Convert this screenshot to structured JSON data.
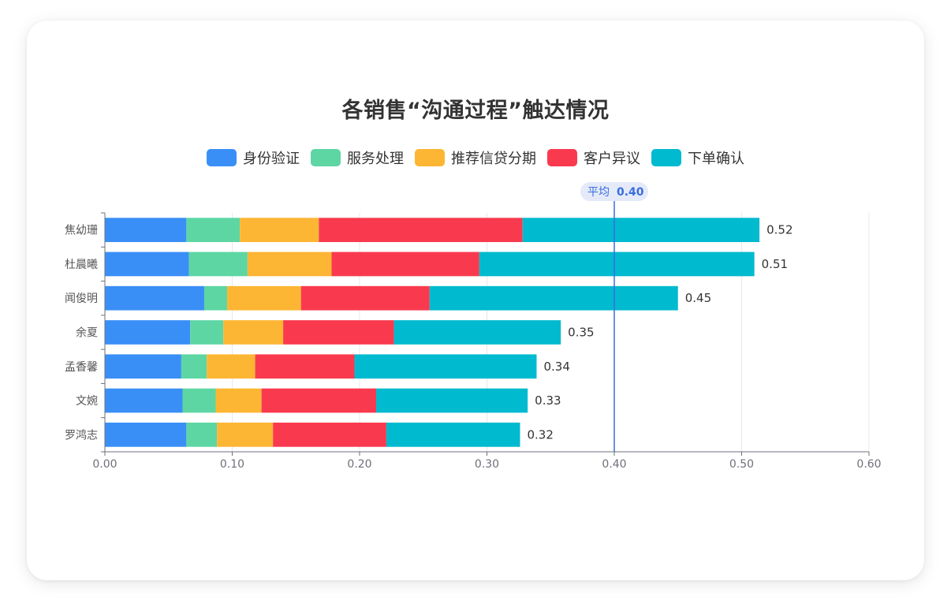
{
  "chart_data": {
    "type": "bar",
    "orientation": "horizontal",
    "stacked": true,
    "title": "各销售“沟通过程”触达情况",
    "categories": [
      "焦幼珊",
      "杜晨曦",
      "闻俊明",
      "余夏",
      "孟香馨",
      "文婉",
      "罗鸿志"
    ],
    "series": [
      {
        "name": "身份验证",
        "color": "#3a8ff7",
        "values": [
          0.064,
          0.066,
          0.078,
          0.067,
          0.06,
          0.061,
          0.064
        ]
      },
      {
        "name": "服务处理",
        "color": "#5dd6a4",
        "values": [
          0.042,
          0.046,
          0.018,
          0.026,
          0.02,
          0.026,
          0.024
        ]
      },
      {
        "name": "推荐信贷分期",
        "color": "#fdb634",
        "values": [
          0.062,
          0.066,
          0.058,
          0.047,
          0.038,
          0.036,
          0.044
        ]
      },
      {
        "name": "客户异议",
        "color": "#f93a4e",
        "values": [
          0.16,
          0.116,
          0.101,
          0.087,
          0.078,
          0.09,
          0.089
        ]
      },
      {
        "name": "下单确认",
        "color": "#00bacf",
        "values": [
          0.186,
          0.216,
          0.195,
          0.131,
          0.143,
          0.119,
          0.105
        ]
      }
    ],
    "totals": [
      "0.52",
      "0.51",
      "0.45",
      "0.35",
      "0.34",
      "0.33",
      "0.32"
    ],
    "xlim": [
      0,
      0.6
    ],
    "xticks": [
      "0.00",
      "0.10",
      "0.20",
      "0.30",
      "0.40",
      "0.50",
      "0.60"
    ],
    "tick_values": [
      0,
      0.1,
      0.2,
      0.3,
      0.4,
      0.5,
      0.6
    ],
    "average": {
      "label": "平均",
      "value_text": "0.40",
      "value": 0.4,
      "color": "#3b6de0"
    },
    "legend_position": "top-center",
    "grid": true
  }
}
